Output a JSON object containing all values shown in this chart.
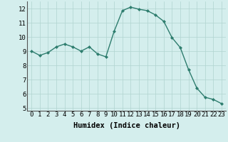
{
  "x": [
    0,
    1,
    2,
    3,
    4,
    5,
    6,
    7,
    8,
    9,
    10,
    11,
    12,
    13,
    14,
    15,
    16,
    17,
    18,
    19,
    20,
    21,
    22,
    23
  ],
  "y": [
    9.0,
    8.7,
    8.9,
    9.3,
    9.5,
    9.3,
    9.0,
    9.3,
    8.8,
    8.6,
    10.4,
    11.85,
    12.1,
    11.95,
    11.85,
    11.55,
    11.1,
    9.95,
    9.25,
    7.7,
    6.4,
    5.75,
    5.6,
    5.3
  ],
  "line_color": "#2e7d6e",
  "marker": "D",
  "marker_size": 2.0,
  "line_width": 1.0,
  "bg_color": "#d4eeed",
  "grid_color": "#b0d4d0",
  "xlabel": "Humidex (Indice chaleur)",
  "xlabel_fontsize": 7.5,
  "tick_fontsize": 6.5,
  "ylim": [
    4.8,
    12.5
  ],
  "xlim": [
    -0.5,
    23.5
  ],
  "yticks": [
    5,
    6,
    7,
    8,
    9,
    10,
    11,
    12
  ],
  "xticks": [
    0,
    1,
    2,
    3,
    4,
    5,
    6,
    7,
    8,
    9,
    10,
    11,
    12,
    13,
    14,
    15,
    16,
    17,
    18,
    19,
    20,
    21,
    22,
    23
  ]
}
